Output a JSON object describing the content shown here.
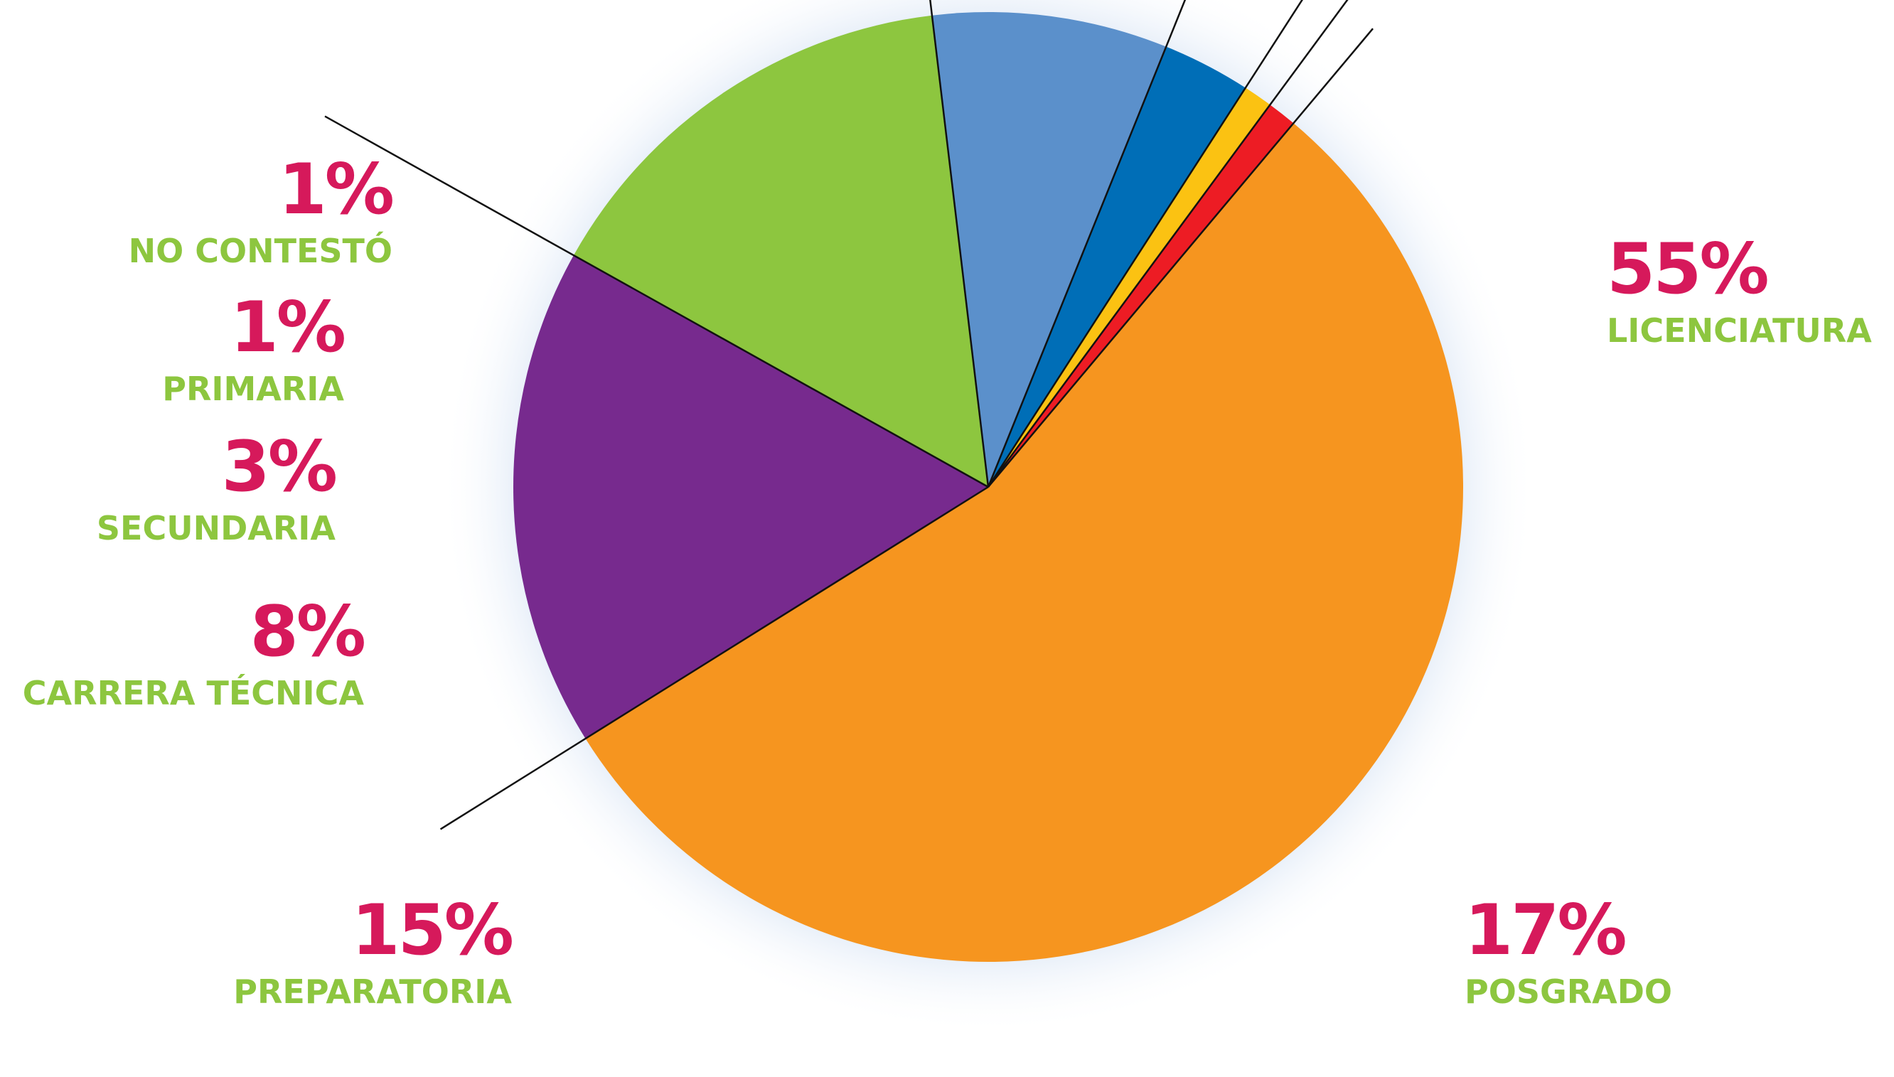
{
  "colors": {
    "percent_text": "#D6195B",
    "category_text": "#8DC63F",
    "leader_line": "#111111",
    "glow": "#BFD3EE"
  },
  "chart_data": {
    "type": "pie",
    "start_angle_deg": -50,
    "direction": "clockwise",
    "slices": [
      {
        "label": "LICENCIATURA",
        "percent_label": "55%",
        "value": 55,
        "color": "#F6951F"
      },
      {
        "label": "POSGRADO",
        "percent_label": "17%",
        "value": 17,
        "color": "#772A8E"
      },
      {
        "label": "PREPARATORIA",
        "percent_label": "15%",
        "value": 15,
        "color": "#8DC63F"
      },
      {
        "label": "CARRERA TÉCNICA",
        "percent_label": "8%",
        "value": 8,
        "color": "#5B90CB"
      },
      {
        "label": "SECUNDARIA",
        "percent_label": "3%",
        "value": 3,
        "color": "#006EB7"
      },
      {
        "label": "PRIMARIA",
        "percent_label": "1%",
        "value": 1,
        "color": "#FBC212"
      },
      {
        "label": "NO CONTESTÓ",
        "percent_label": "1%",
        "value": 1,
        "color": "#ED1C24"
      }
    ]
  }
}
